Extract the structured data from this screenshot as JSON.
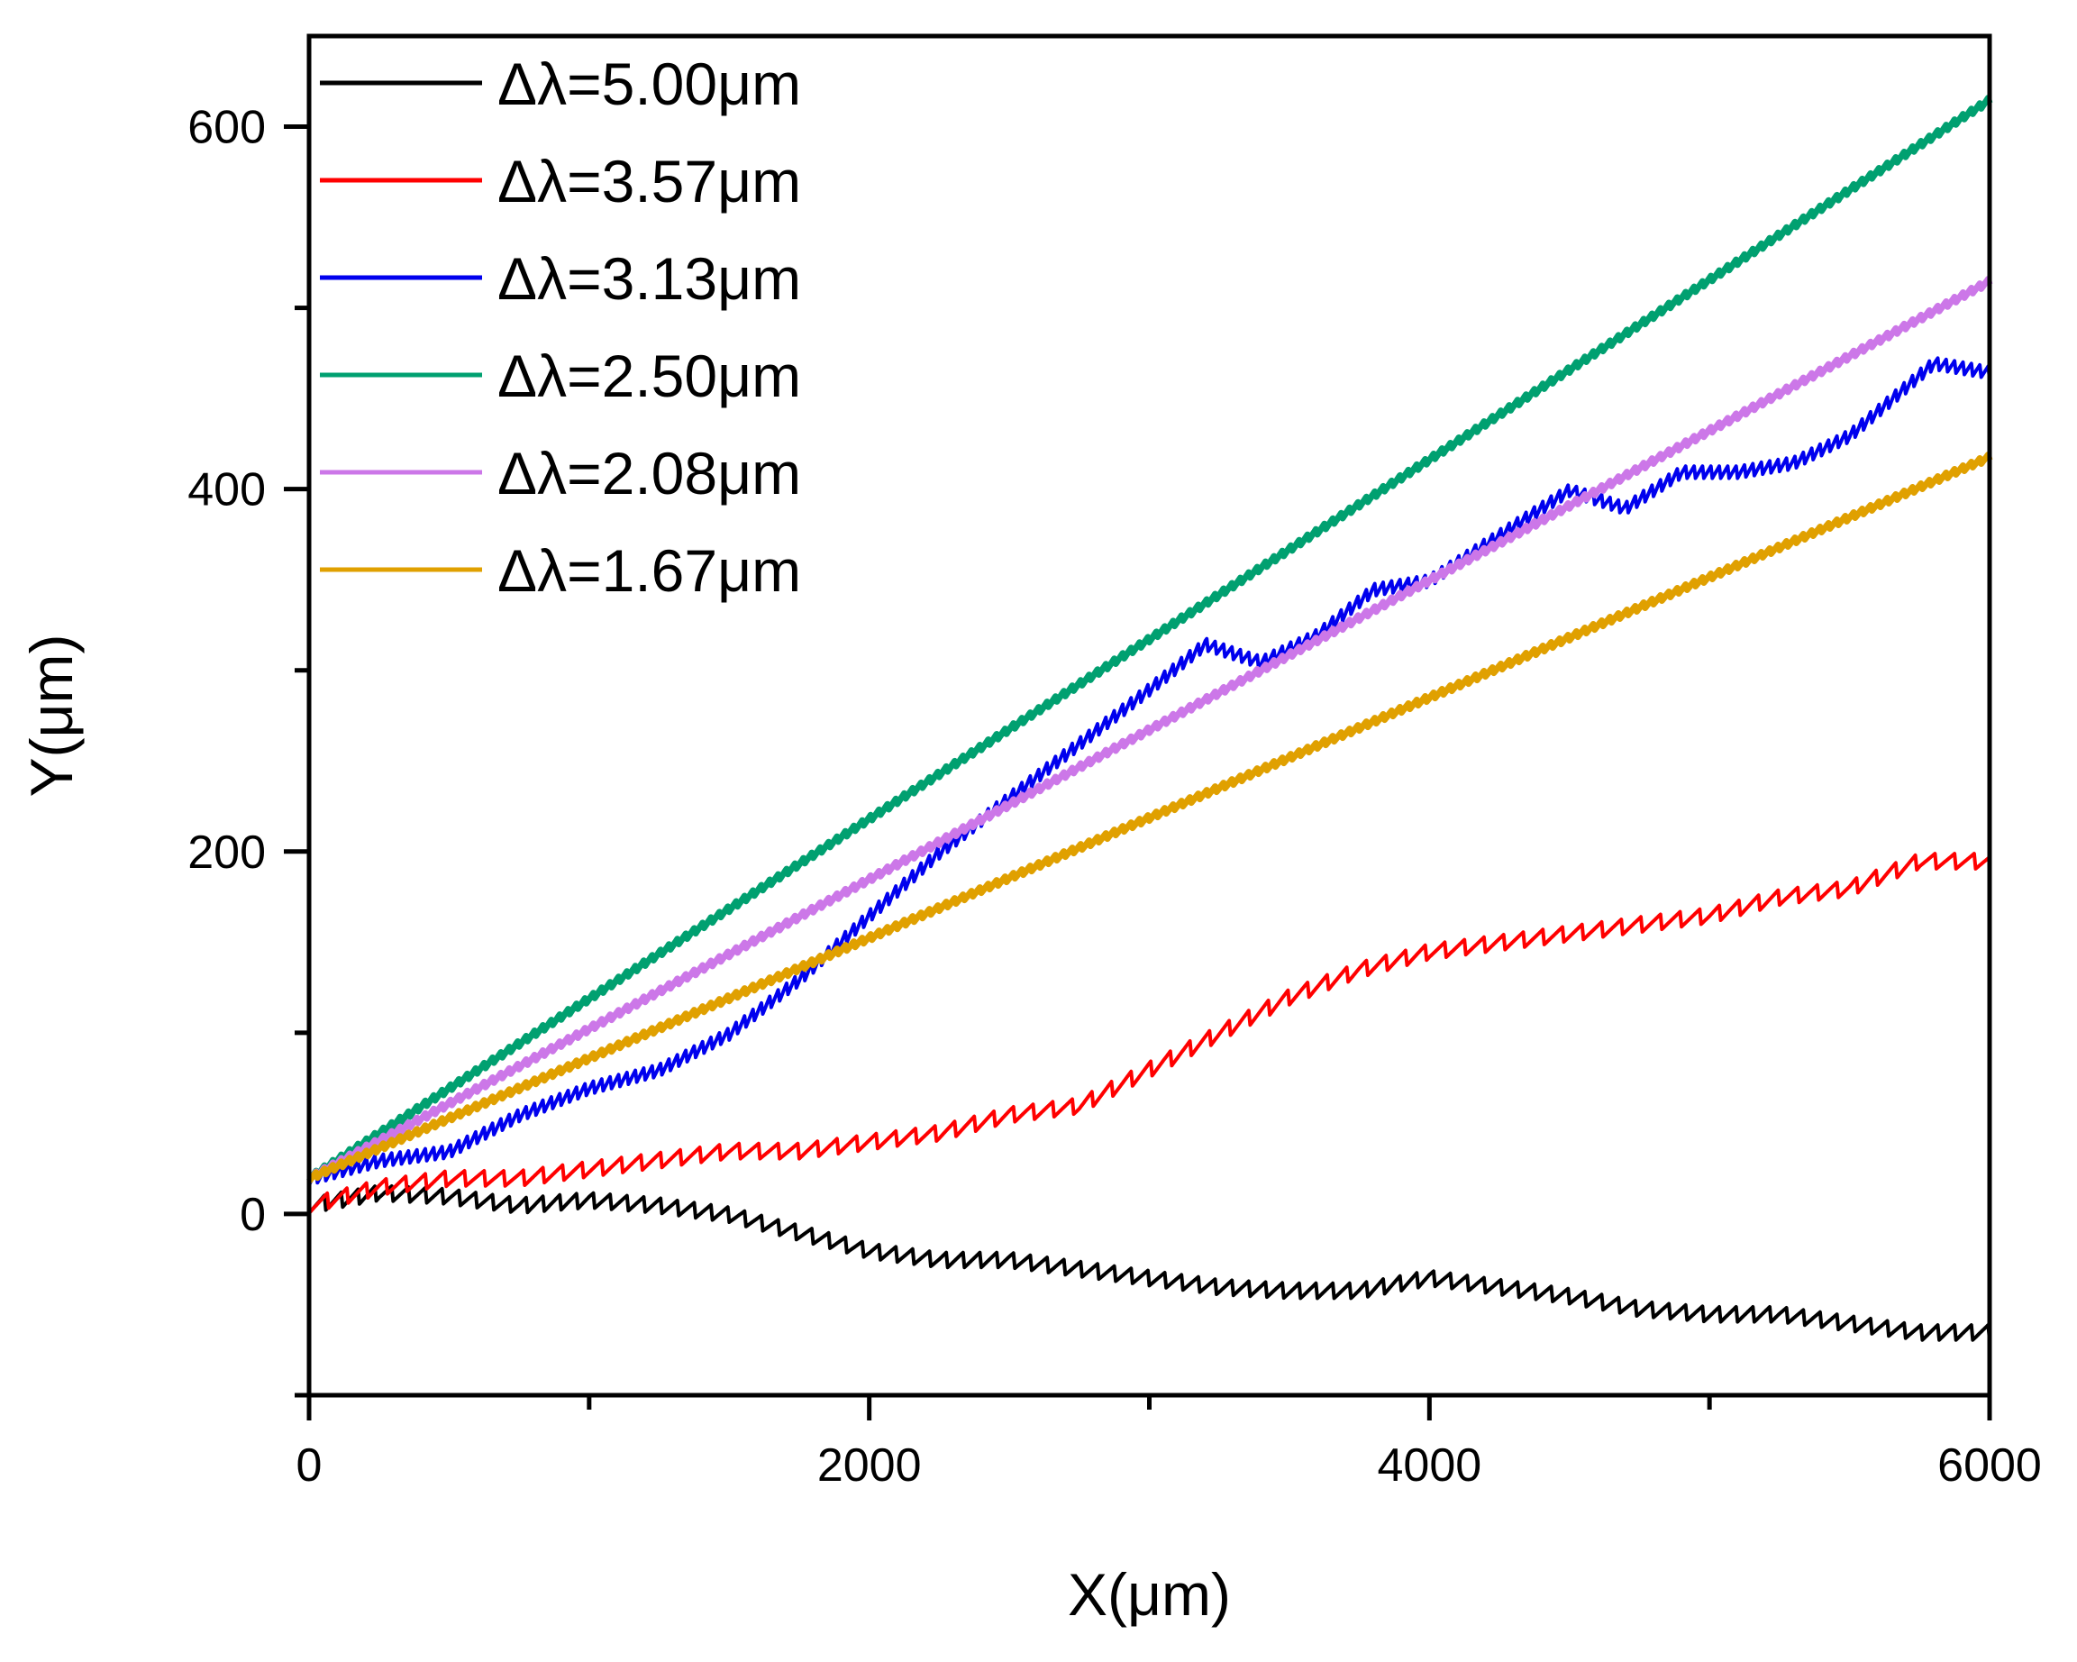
{
  "chart_data": {
    "type": "line",
    "title": "",
    "xlabel": "X(μm)",
    "ylabel": "Y(μm)",
    "xlim": [
      0,
      6000
    ],
    "ylim": [
      -100,
      650
    ],
    "xticks": [
      0,
      2000,
      4000,
      6000
    ],
    "xminor": [
      1000,
      3000,
      5000
    ],
    "yticks": [
      0,
      200,
      400,
      600
    ],
    "yminor": [
      -100,
      100,
      300,
      500
    ],
    "xtick_labels": [
      "0",
      "2000",
      "4000",
      "6000"
    ],
    "ytick_labels": [
      "0",
      "200",
      "400",
      "600"
    ],
    "legend_position": "top-left",
    "grid": false,
    "series": [
      {
        "name": "Δλ=5.00μm",
        "color": "#000000",
        "x": [
          0,
          250,
          500,
          750,
          1000,
          1250,
          1500,
          1750,
          2000,
          2250,
          2500,
          2750,
          3000,
          3250,
          3500,
          3750,
          4000,
          4250,
          4500,
          4750,
          5000,
          5250,
          5500,
          5750,
          6000
        ],
        "y": [
          5,
          12,
          10,
          5,
          8,
          5,
          0,
          -10,
          -20,
          -25,
          -25,
          -30,
          -35,
          -40,
          -42,
          -42,
          -35,
          -40,
          -45,
          -52,
          -55,
          -55,
          -60,
          -65,
          -65
        ]
      },
      {
        "name": "Δλ=3.57μm",
        "color": "#ff0000",
        "x": [
          0,
          250,
          500,
          750,
          1000,
          1250,
          1500,
          1750,
          2000,
          2250,
          2500,
          2750,
          3000,
          3250,
          3500,
          3750,
          4000,
          4250,
          4500,
          4750,
          5000,
          5250,
          5500,
          5750,
          6000
        ],
        "y": [
          5,
          15,
          20,
          20,
          25,
          30,
          35,
          35,
          40,
          45,
          55,
          60,
          80,
          100,
          120,
          135,
          145,
          150,
          155,
          160,
          165,
          175,
          180,
          195,
          195
        ]
      },
      {
        "name": "Δλ=3.13μm",
        "color": "#0000ee",
        "x": [
          0,
          250,
          500,
          750,
          1000,
          1250,
          1500,
          1750,
          2000,
          2250,
          2500,
          2750,
          3000,
          3200,
          3400,
          3600,
          3800,
          4000,
          4250,
          4500,
          4700,
          4900,
          5100,
          5300,
          5500,
          5800,
          6000
        ],
        "y": [
          20,
          30,
          35,
          55,
          70,
          80,
          100,
          130,
          165,
          200,
          230,
          260,
          290,
          315,
          305,
          320,
          345,
          350,
          375,
          400,
          390,
          410,
          410,
          415,
          430,
          470,
          465
        ]
      },
      {
        "name": "Δλ=2.50μm",
        "color": "#00a070",
        "x": [
          0,
          6000
        ],
        "y": [
          20,
          615
        ]
      },
      {
        "name": "Δλ=2.08μm",
        "color": "#cc77e8",
        "x": [
          0,
          6000
        ],
        "y": [
          20,
          515
        ]
      },
      {
        "name": "Δλ=1.67μm",
        "color": "#e0a000",
        "x": [
          0,
          6000
        ],
        "y": [
          20,
          418
        ]
      }
    ]
  }
}
